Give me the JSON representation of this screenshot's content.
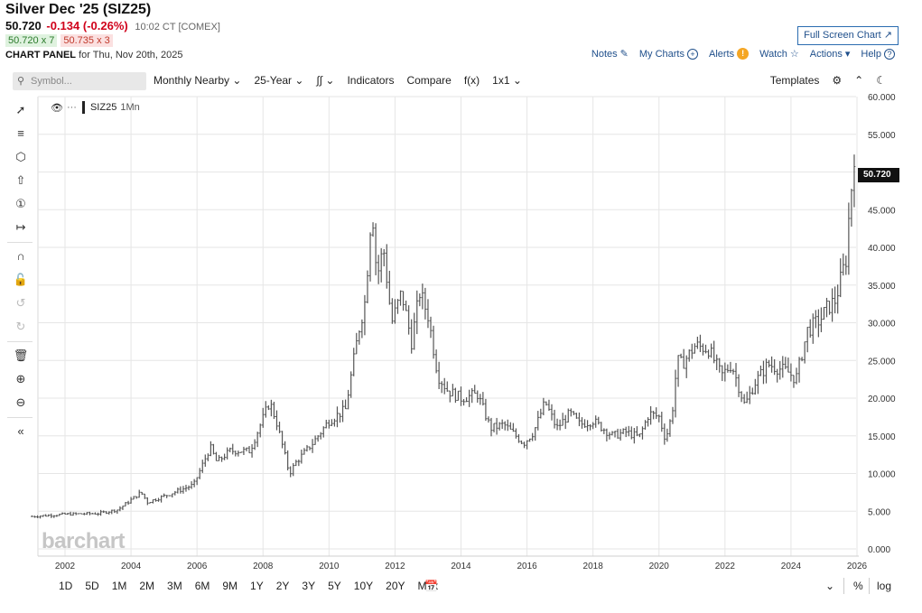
{
  "header": {
    "title": "Silver Dec '25 (SIZ25)",
    "last": "50.720",
    "change": "-0.134 (-0.26%)",
    "time": "10:02 CT [COMEX]",
    "bid": "50.720 x 7",
    "ask": "50.735 x 3",
    "panel_label": "CHART PANEL",
    "panel_date": "for Thu, Nov 20th, 2025",
    "fullscreen_label": "Full Screen Chart",
    "links": {
      "notes": "Notes",
      "mycharts": "My Charts",
      "alerts": "Alerts",
      "alerts_count": "!",
      "watch": "Watch",
      "actions": "Actions",
      "help": "Help"
    }
  },
  "toolbar": {
    "search_placeholder": "Symbol...",
    "monthly": "Monthly Nearby",
    "range": "25-Year",
    "indicators": "Indicators",
    "compare": "Compare",
    "fx": "f(x)",
    "layout": "1x1",
    "templates": "Templates"
  },
  "bottom": {
    "periods": [
      "1D",
      "5D",
      "1M",
      "2M",
      "3M",
      "6M",
      "9M",
      "1Y",
      "2Y",
      "3Y",
      "5Y",
      "10Y",
      "20Y",
      "Max"
    ],
    "percent": "%",
    "log": "log"
  },
  "colors": {
    "bar": "#555555",
    "grid": "#e6e6e6",
    "price_label_bg": "#111111",
    "negative": "#d0021b"
  },
  "chart_data": {
    "type": "ohlc",
    "symbol_label": "SIZ25",
    "interval_label": "1Mn",
    "watermark": "barchart",
    "last_price_label": "50.720",
    "ylim": [
      0,
      60
    ],
    "y_ticks": [
      "60.000",
      "55.000",
      "50.000",
      "45.000",
      "40.000",
      "35.000",
      "30.000",
      "25.000",
      "20.000",
      "15.000",
      "10.000",
      "5.000",
      "0.000"
    ],
    "x_ticks": [
      "2002",
      "2004",
      "2006",
      "2008",
      "2010",
      "2012",
      "2014",
      "2016",
      "2018",
      "2020",
      "2022",
      "2024",
      "2026"
    ],
    "x_range": [
      2001.0,
      2025.95
    ],
    "grid": true,
    "anchors": [
      [
        2001.0,
        4.3
      ],
      [
        2002.0,
        4.6
      ],
      [
        2003.0,
        4.7
      ],
      [
        2003.6,
        5.2
      ],
      [
        2004.3,
        7.5
      ],
      [
        2004.5,
        6.2
      ],
      [
        2005.0,
        7.0
      ],
      [
        2005.9,
        8.5
      ],
      [
        2006.4,
        13.5
      ],
      [
        2006.6,
        11.5
      ],
      [
        2007.0,
        13.0
      ],
      [
        2007.6,
        13.0
      ],
      [
        2008.2,
        19.5
      ],
      [
        2008.4,
        17.0
      ],
      [
        2008.8,
        10.0
      ],
      [
        2009.0,
        11.5
      ],
      [
        2009.5,
        14.0
      ],
      [
        2010.0,
        17.0
      ],
      [
        2010.5,
        18.5
      ],
      [
        2010.9,
        29.0
      ],
      [
        2011.1,
        33.0
      ],
      [
        2011.3,
        46.0
      ],
      [
        2011.45,
        36.0
      ],
      [
        2011.65,
        40.0
      ],
      [
        2011.9,
        30.0
      ],
      [
        2012.2,
        34.0
      ],
      [
        2012.5,
        27.5
      ],
      [
        2012.75,
        34.0
      ],
      [
        2013.0,
        31.0
      ],
      [
        2013.3,
        23.0
      ],
      [
        2013.6,
        21.0
      ],
      [
        2014.0,
        20.0
      ],
      [
        2014.5,
        20.5
      ],
      [
        2014.9,
        16.0
      ],
      [
        2015.3,
        16.5
      ],
      [
        2015.9,
        14.0
      ],
      [
        2016.2,
        15.5
      ],
      [
        2016.55,
        19.5
      ],
      [
        2016.9,
        16.0
      ],
      [
        2017.3,
        18.0
      ],
      [
        2017.6,
        16.5
      ],
      [
        2018.0,
        17.0
      ],
      [
        2018.6,
        15.0
      ],
      [
        2019.0,
        15.5
      ],
      [
        2019.4,
        14.8
      ],
      [
        2019.7,
        18.0
      ],
      [
        2020.0,
        17.5
      ],
      [
        2020.2,
        14.5
      ],
      [
        2020.4,
        18.0
      ],
      [
        2020.55,
        25.0
      ],
      [
        2020.7,
        24.5
      ],
      [
        2021.1,
        27.0
      ],
      [
        2021.5,
        26.5
      ],
      [
        2021.9,
        23.0
      ],
      [
        2022.2,
        24.5
      ],
      [
        2022.6,
        19.0
      ],
      [
        2022.9,
        22.0
      ],
      [
        2023.3,
        24.5
      ],
      [
        2023.6,
        24.0
      ],
      [
        2023.9,
        23.5
      ],
      [
        2024.15,
        22.5
      ],
      [
        2024.5,
        29.0
      ],
      [
        2024.9,
        30.5
      ],
      [
        2025.1,
        32.0
      ],
      [
        2025.35,
        33.0
      ],
      [
        2025.55,
        36.5
      ],
      [
        2025.7,
        39.0
      ],
      [
        2025.78,
        46.5
      ],
      [
        2025.85,
        48.5
      ],
      [
        2025.9,
        50.7
      ]
    ]
  }
}
